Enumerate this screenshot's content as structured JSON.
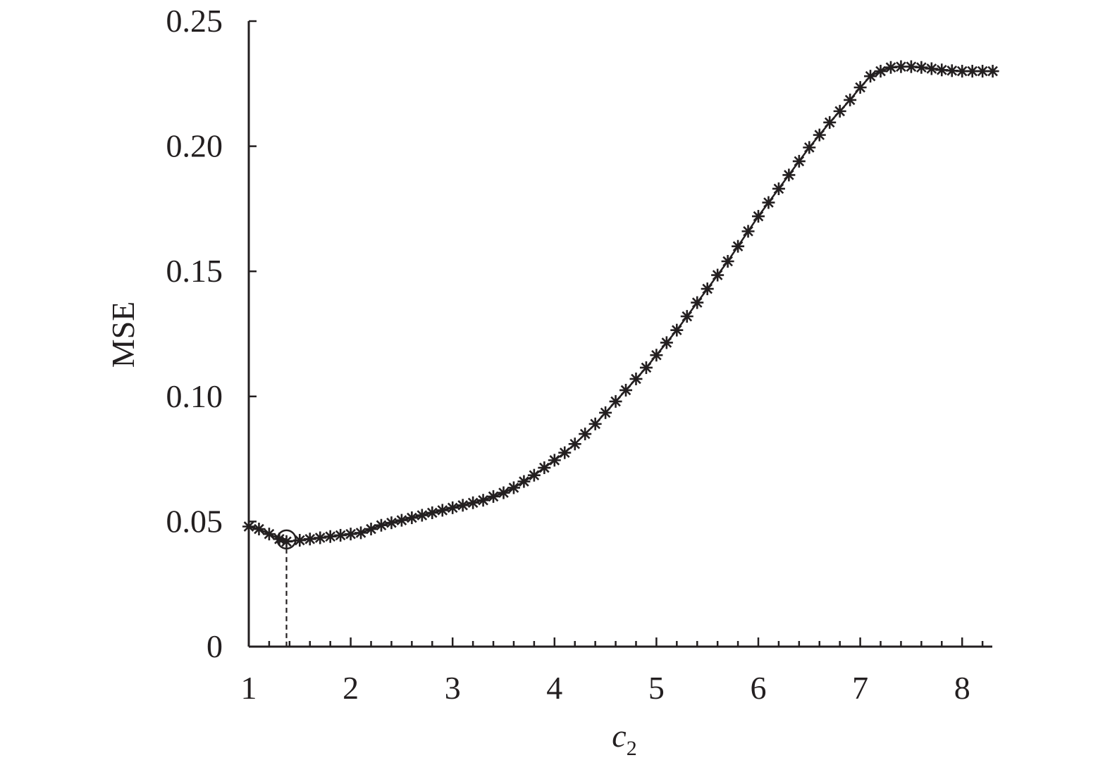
{
  "chart_data": {
    "type": "line",
    "title": "",
    "xlabel": "c",
    "xlabel_subscript": "2",
    "ylabel": "MSE",
    "xlim": [
      1,
      8.3
    ],
    "ylim": [
      0,
      0.25
    ],
    "grid": false,
    "legend": "none",
    "x_ticks": [
      1,
      2,
      3,
      4,
      5,
      6,
      7,
      8
    ],
    "x_tick_labels": [
      "1",
      "2",
      "3",
      "4",
      "5",
      "6",
      "7",
      "8"
    ],
    "x_minor_step": 0.2,
    "y_ticks": [
      0,
      0.05,
      0.1,
      0.15,
      0.2,
      0.25
    ],
    "y_tick_labels": [
      "0",
      "0.05",
      "0.10",
      "0.15",
      "0.20",
      "0.25"
    ],
    "marker": "asterisk",
    "series_color": "#231f20",
    "minimum": {
      "x": 1.37,
      "y": 0.042
    },
    "series": [
      {
        "x": [
          1.0,
          1.1,
          1.2,
          1.3,
          1.37,
          1.5,
          1.6,
          1.7,
          1.8,
          1.9,
          2.0,
          2.1,
          2.2,
          2.3,
          2.4,
          2.5,
          2.6,
          2.7,
          2.8,
          2.9,
          3.0,
          3.1,
          3.2,
          3.3,
          3.4,
          3.5,
          3.6,
          3.7,
          3.8,
          3.9,
          4.0,
          4.1,
          4.2,
          4.3,
          4.4,
          4.5,
          4.6,
          4.7,
          4.8,
          4.9,
          5.0,
          5.1,
          5.2,
          5.3,
          5.4,
          5.5,
          5.6,
          5.7,
          5.8,
          5.9,
          6.0,
          6.1,
          6.2,
          6.3,
          6.4,
          6.5,
          6.6,
          6.7,
          6.8,
          6.9,
          7.0,
          7.1,
          7.2,
          7.3,
          7.4,
          7.5,
          7.6,
          7.7,
          7.8,
          7.9,
          8.0,
          8.1,
          8.2,
          8.3
        ],
        "y": [
          0.048,
          0.047,
          0.045,
          0.043,
          0.042,
          0.0425,
          0.043,
          0.0435,
          0.044,
          0.0445,
          0.045,
          0.0455,
          0.047,
          0.0485,
          0.0495,
          0.0505,
          0.0515,
          0.0525,
          0.0535,
          0.0545,
          0.0555,
          0.0565,
          0.0575,
          0.0585,
          0.06,
          0.0615,
          0.0635,
          0.066,
          0.0685,
          0.0715,
          0.0745,
          0.0775,
          0.081,
          0.085,
          0.089,
          0.0935,
          0.098,
          0.1025,
          0.107,
          0.1115,
          0.1165,
          0.1215,
          0.1265,
          0.132,
          0.1375,
          0.143,
          0.1485,
          0.154,
          0.16,
          0.166,
          0.172,
          0.1775,
          0.183,
          0.1885,
          0.194,
          0.1995,
          0.2045,
          0.2095,
          0.214,
          0.2185,
          0.2235,
          0.228,
          0.23,
          0.2315,
          0.2318,
          0.2318,
          0.2315,
          0.231,
          0.2305,
          0.2302,
          0.23,
          0.23,
          0.23,
          0.23
        ]
      }
    ]
  }
}
